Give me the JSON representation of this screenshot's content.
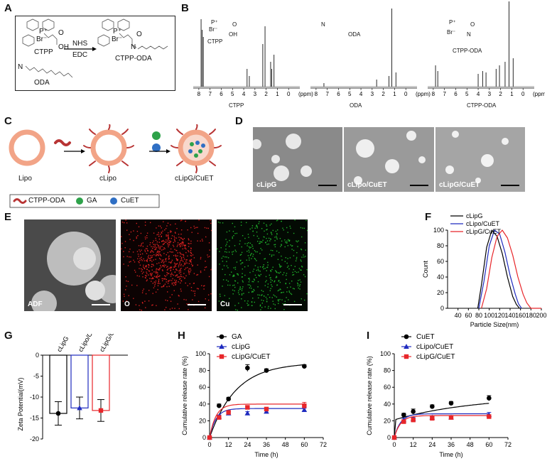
{
  "panels": {
    "A": "A",
    "B": "B",
    "C": "C",
    "D": "D",
    "E": "E",
    "F": "F",
    "G": "G",
    "H": "H",
    "I": "I"
  },
  "panelA": {
    "reactant1": "CTPP",
    "reactant1_p": "P⁺",
    "reactant1_br": "Br⁻",
    "reactant1_o": "O",
    "reactant1_oh": "OH",
    "reagent1": "NHS",
    "reagent2": "EDC",
    "product": "CTPP-ODA",
    "product_p": "P⁺",
    "product_br": "Br⁻",
    "product_o": "O",
    "product_n": "N",
    "reactant2": "ODA",
    "reactant2_n": "N"
  },
  "panelB": {
    "spectra": [
      {
        "xlabel": "CTPP",
        "struct_label": "CTPP",
        "atoms": [
          "P⁺",
          "Br⁻",
          "O",
          "OH"
        ]
      },
      {
        "xlabel": "ODA",
        "struct_label": "ODA",
        "atoms": [
          "N"
        ]
      },
      {
        "xlabel": "CTPP-ODA",
        "struct_label": "CTPP-ODA",
        "atoms": [
          "P⁺",
          "Br⁻",
          "O",
          "N"
        ]
      }
    ],
    "ticks": [
      "8",
      "7",
      "6",
      "5",
      "4",
      "3",
      "2",
      "1",
      "0"
    ],
    "ppm": "(ppm)"
  },
  "panelC": {
    "labels": [
      "Lipo",
      "cLipo",
      "cLipG/CuET"
    ],
    "legend": [
      "CTPP-ODA",
      "GA",
      "CuET"
    ],
    "colors": {
      "lipid": "#f2a487",
      "ctpp": "#b83434",
      "ga": "#2ea24a",
      "cuet": "#2f6fc4"
    }
  },
  "panelD": {
    "images": [
      "cLipG",
      "cLipo/CuET",
      "cLipG/CuET"
    ]
  },
  "panelE": {
    "images": [
      "ADF",
      "O",
      "Cu"
    ]
  },
  "chart_data": [
    {
      "id": "F",
      "type": "line",
      "xlabel": "Particle Size(nm)",
      "ylabel": "Count",
      "xlim": [
        20,
        200
      ],
      "ylim": [
        0,
        100
      ],
      "xticks": [
        40,
        60,
        80,
        100,
        120,
        140,
        160,
        180,
        200
      ],
      "yticks": [
        0,
        20,
        40,
        60,
        80,
        100
      ],
      "series": [
        {
          "name": "cLipG",
          "color": "#000000",
          "x": [
            78,
            85,
            95,
            105,
            115,
            125,
            135,
            145,
            152,
            158
          ],
          "y": [
            0,
            30,
            78,
            100,
            92,
            70,
            40,
            15,
            5,
            0
          ]
        },
        {
          "name": "cLipo/CuET",
          "color": "#1f2bbf",
          "x": [
            80,
            90,
            100,
            110,
            120,
            130,
            140,
            150,
            156,
            162
          ],
          "y": [
            0,
            35,
            80,
            100,
            95,
            72,
            42,
            18,
            6,
            0
          ]
        },
        {
          "name": "cLipG/CuET",
          "color": "#e8262a",
          "x": [
            85,
            95,
            105,
            115,
            125,
            135,
            145,
            155,
            165,
            172,
            180,
            200
          ],
          "y": [
            0,
            25,
            65,
            92,
            100,
            90,
            68,
            40,
            18,
            7,
            0,
            0
          ]
        }
      ]
    },
    {
      "id": "G",
      "type": "bar",
      "ylabel": "Zeta Potential(mV)",
      "ylim": [
        -20,
        0
      ],
      "yticks": [
        0,
        -5,
        -10,
        -15,
        -20
      ],
      "categories": [
        "cLipG",
        "cLipo/CuET",
        "cLipG/CuET"
      ],
      "values": [
        -13.9,
        -12.6,
        -13.2
      ],
      "errors": [
        2.8,
        2.6,
        2.6
      ],
      "colors": [
        "#000000",
        "#1f2bbf",
        "#e8262a"
      ]
    },
    {
      "id": "H",
      "type": "line",
      "xlabel": "Time (h)",
      "ylabel": "Cumulative release rate (%)",
      "xlim": [
        0,
        72
      ],
      "ylim": [
        0,
        100
      ],
      "xticks": [
        0,
        12,
        24,
        36,
        48,
        60,
        72
      ],
      "yticks": [
        0,
        20,
        40,
        60,
        80,
        100
      ],
      "series": [
        {
          "name": "GA",
          "color": "#000000",
          "marker": "circle",
          "x": [
            0,
            6,
            12,
            24,
            36,
            60
          ],
          "y": [
            0,
            38,
            46,
            83,
            80,
            85
          ],
          "err": [
            0,
            2,
            2,
            4,
            2,
            2
          ]
        },
        {
          "name": "cLipG",
          "color": "#1f2bbf",
          "marker": "triangle",
          "x": [
            0,
            6,
            12,
            24,
            36,
            60
          ],
          "y": [
            0,
            25,
            29,
            29,
            31,
            33
          ],
          "err": [
            0,
            2,
            2,
            2,
            2,
            2
          ]
        },
        {
          "name": "cLipG/CuET",
          "color": "#e8262a",
          "marker": "square",
          "x": [
            0,
            6,
            12,
            24,
            36,
            60
          ],
          "y": [
            0,
            24,
            30,
            36,
            34,
            38
          ],
          "err": [
            0,
            2,
            2,
            2,
            2,
            4
          ]
        }
      ]
    },
    {
      "id": "I",
      "type": "line",
      "xlabel": "Time (h)",
      "ylabel": "Cumulative release rate (%)",
      "xlim": [
        0,
        72
      ],
      "ylim": [
        0,
        100
      ],
      "xticks": [
        0,
        12,
        24,
        36,
        48,
        60,
        72
      ],
      "yticks": [
        0,
        20,
        40,
        60,
        80,
        100
      ],
      "series": [
        {
          "name": "CuET",
          "color": "#000000",
          "marker": "circle",
          "x": [
            0,
            6,
            12,
            24,
            36,
            60
          ],
          "y": [
            0,
            27,
            31,
            37,
            41,
            47
          ],
          "err": [
            0,
            2,
            3,
            2,
            2,
            3
          ]
        },
        {
          "name": "cLipo/CuET",
          "color": "#1f2bbf",
          "marker": "triangle",
          "x": [
            0,
            6,
            12,
            24,
            36,
            60
          ],
          "y": [
            0,
            21,
            22,
            24,
            24,
            27
          ],
          "err": [
            0,
            2,
            2,
            2,
            2,
            3
          ]
        },
        {
          "name": "cLipG/CuET",
          "color": "#e8262a",
          "marker": "square",
          "x": [
            0,
            6,
            12,
            24,
            36,
            60
          ],
          "y": [
            0,
            19,
            21,
            23,
            24,
            25
          ],
          "err": [
            0,
            2,
            2,
            2,
            2,
            2
          ]
        }
      ]
    }
  ]
}
